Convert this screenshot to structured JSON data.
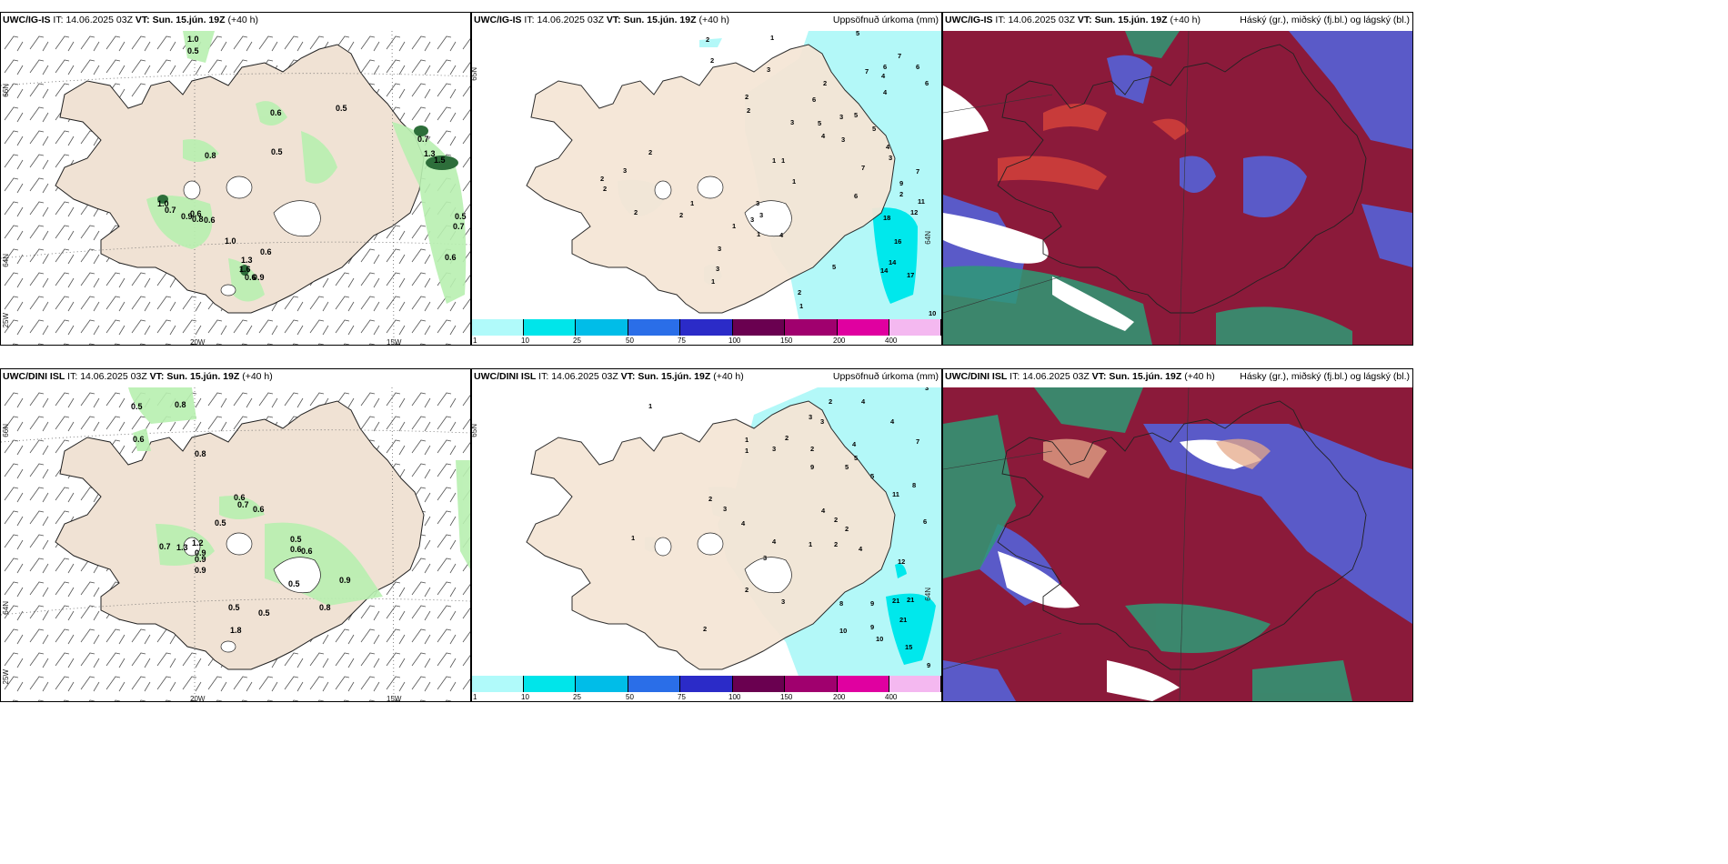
{
  "colors": {
    "land": "#f0e2d4",
    "coast": "#222222",
    "cloud_green": "#b8f0b0",
    "cloud_dark": "#2d6e3a",
    "precip_light": "#b3f8f8",
    "precip_mid": "#00e8ec",
    "high_cloud": "#8b1a3a",
    "mid_cloud": "#5a5ac8",
    "low_cloud": "#2e9a76",
    "hatch_grey": "#bba89a"
  },
  "panels": {
    "tl": {
      "model": "UWC/IG-IS",
      "it_label": "IT:",
      "it": "14.06.2025 03Z",
      "vt_label": "VT:",
      "vt": "Sun. 15.jún. 19Z",
      "lead": "(+40 h)",
      "lat66": "66N",
      "lat64": "64N",
      "lon25": "25W",
      "lon20": "20W",
      "lon15": "15W"
    },
    "tm": {
      "model": "UWC/IG-IS",
      "it_label": "IT:",
      "it": "14.06.2025 03Z",
      "vt_label": "VT:",
      "vt": "Sun. 15.jún. 19Z",
      "lead": "(+40 h)",
      "right": "Uppsöfnuð úrkoma (mm)",
      "lat65": "65N",
      "lat64": "64N"
    },
    "tr": {
      "model": "UWC/IG-IS",
      "it_label": "IT:",
      "it": "14.06.2025 03Z",
      "vt_label": "VT:",
      "vt": "Sun. 15.jún. 19Z",
      "lead": "(+40 h)",
      "right": "Háský (gr.), miðský (fj.bl.) og lágský (bl.)"
    },
    "bl": {
      "model": "UWC/DINI ISL",
      "it_label": "IT:",
      "it": "14.06.2025 03Z",
      "vt_label": "VT:",
      "vt": "Sun. 15.jún. 19Z",
      "lead": "(+40 h)",
      "lat66": "66N",
      "lat64": "64N",
      "lon25": "25W",
      "lon20": "20W",
      "lon15": "15W"
    },
    "bm": {
      "model": "UWC/DINI ISL",
      "it_label": "IT:",
      "it": "14.06.2025 03Z",
      "vt_label": "VT:",
      "vt": "Sun. 15.jún. 19Z",
      "lead": "(+40 h)",
      "right": "Uppsöfnuð úrkoma (mm)",
      "lat65": "65N",
      "lat64": "64N"
    },
    "br": {
      "model": "UWC/DINI ISL",
      "it_label": "IT:",
      "it": "14.06.2025 03Z",
      "vt_label": "VT:",
      "vt": "Sun. 15.jún. 19Z",
      "lead": "(+40 h)",
      "right": "Hásky (gr.), miðský (fj.bl.) og lágský (bl.)"
    }
  },
  "colorbar": {
    "ticks": [
      "1",
      "10",
      "25",
      "50",
      "75",
      "100",
      "150",
      "200",
      "400"
    ],
    "colors": [
      "#b0fafa",
      "#00e5ea",
      "#00bde8",
      "#2a6ee8",
      "#2b2bc8",
      "#6a0050",
      "#a0006e",
      "#e000a0",
      "#f4b8f0"
    ]
  },
  "labels": {
    "tl": [
      "1.0",
      "0.5",
      "0.6",
      "0.5",
      "0.8",
      "0.5",
      "0.7",
      "1.3",
      "1.5",
      "1.0",
      "0.7",
      "0.9",
      "0.6",
      "0.6",
      "0.8",
      "1.0",
      "0.6",
      "1.3",
      "1.6",
      "0.6",
      "0.9",
      "0.5",
      "0.7",
      "0.6"
    ],
    "bl": [
      "0.5",
      "0.8",
      "0.6",
      "0.8",
      "0.6",
      "0.7",
      "0.6",
      "0.5",
      "0.7",
      "1.3",
      "1.2",
      "0.9",
      "0.9",
      "0.9",
      "0.5",
      "0.6",
      "0.6",
      "0.5",
      "0.9",
      "0.5",
      "0.5",
      "0.8",
      "1.8"
    ],
    "tm": [
      "2",
      "1",
      "5",
      "2",
      "7",
      "6",
      "4",
      "6",
      "7",
      "3",
      "6",
      "2",
      "4",
      "2",
      "6",
      "3",
      "5",
      "3",
      "4",
      "5",
      "3",
      "5",
      "2",
      "4",
      "7",
      "1",
      "1",
      "3",
      "1",
      "7",
      "9",
      "2",
      "6",
      "11",
      "3",
      "12",
      "18",
      "16",
      "14",
      "14",
      "17",
      "2",
      "5",
      "4",
      "2",
      "3",
      "3",
      "1",
      "10",
      "2",
      "2",
      "1",
      "1",
      "3",
      "1",
      "3",
      "2",
      "3",
      "1",
      "2"
    ],
    "bm": [
      "1",
      "3",
      "2",
      "4",
      "3",
      "4",
      "7",
      "3",
      "2",
      "2",
      "1",
      "4",
      "1",
      "3",
      "5",
      "9",
      "5",
      "5",
      "8",
      "11",
      "2",
      "3",
      "4",
      "4",
      "2",
      "6",
      "12",
      "2",
      "2",
      "4",
      "1",
      "3",
      "4",
      "3",
      "2",
      "21",
      "21",
      "21",
      "8",
      "9",
      "10",
      "10",
      "9",
      "15",
      "9",
      "2",
      "1"
    ]
  }
}
